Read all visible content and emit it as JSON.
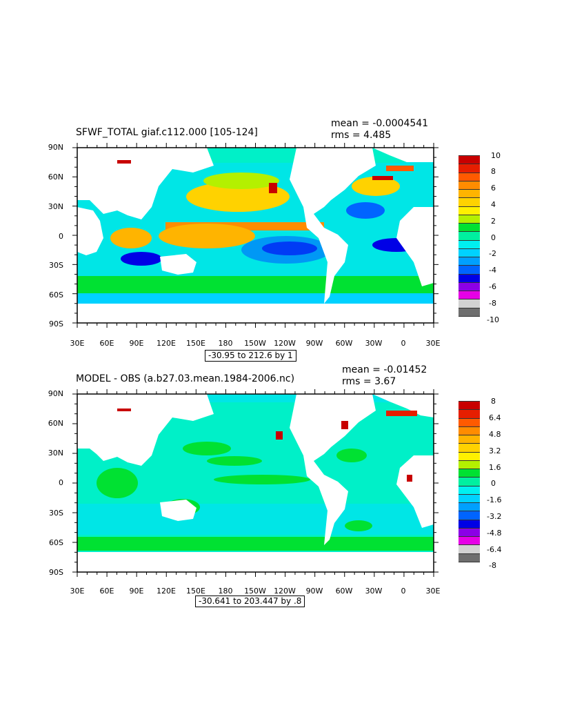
{
  "panels": [
    {
      "title": "SFWF_TOTAL giaf.c112.000 [105-124]",
      "mean": "mean = -0.0004541",
      "rms": "rms = 4.485",
      "contour_info": "-30.95 to 212.6 by 1",
      "yticks": [
        "90N",
        "60N",
        "30N",
        "0",
        "30S",
        "60S",
        "90S"
      ],
      "xticks": [
        "30E",
        "60E",
        "90E",
        "120E",
        "150E",
        "180",
        "150W",
        "120W",
        "90W",
        "60W",
        "30W",
        "0",
        "30E"
      ],
      "colorbar": {
        "labels": [
          "10",
          "8",
          "6",
          "4",
          "2",
          "0",
          "-2",
          "-4",
          "-6",
          "-8",
          "-10"
        ],
        "colors": [
          "#c80000",
          "#e61e00",
          "#ff5a00",
          "#ff8c00",
          "#ffb400",
          "#ffd200",
          "#fff000",
          "#b4f000",
          "#00e132",
          "#00f0a0",
          "#00f0f0",
          "#00d2ff",
          "#00a0ff",
          "#0064ff",
          "#0000e6",
          "#8c00e6",
          "#e600e6",
          "#d2d2d2",
          "#6e6e6e"
        ]
      }
    },
    {
      "title": "MODEL - OBS (a.b27.03.mean.1984-2006.nc)",
      "mean": "mean = -0.01452",
      "rms": "rms = 3.67",
      "contour_info": "-30.641 to 203.447 by .8",
      "yticks": [
        "90N",
        "60N",
        "30N",
        "0",
        "30S",
        "60S",
        "90S"
      ],
      "xticks": [
        "30E",
        "60E",
        "90E",
        "120E",
        "150E",
        "180",
        "150W",
        "120W",
        "90W",
        "60W",
        "30W",
        "0",
        "30E"
      ],
      "colorbar": {
        "labels": [
          "8",
          "6.4",
          "4.8",
          "3.2",
          "1.6",
          "0",
          "-1.6",
          "-3.2",
          "-4.8",
          "-6.4",
          "-8"
        ],
        "colors": [
          "#c80000",
          "#e61e00",
          "#ff5a00",
          "#ff8c00",
          "#ffb400",
          "#ffd200",
          "#fff000",
          "#b4f000",
          "#00e132",
          "#00f0a0",
          "#00f0f0",
          "#00d2ff",
          "#00a0ff",
          "#0064ff",
          "#0000e6",
          "#8c00e6",
          "#e600e6",
          "#d2d2d2",
          "#6e6e6e"
        ]
      }
    }
  ]
}
